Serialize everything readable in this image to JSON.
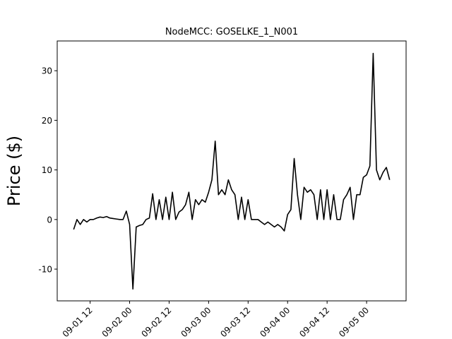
{
  "chart_data": {
    "type": "line",
    "title": "NodeMCC: GOSELKE_1_N001",
    "y_label": "Price ($)",
    "color": "#000000",
    "x": [
      "09-01 07",
      "09-01 08",
      "09-01 09",
      "09-01 10",
      "09-01 11",
      "09-01 12",
      "09-01 13",
      "09-01 14",
      "09-01 15",
      "09-01 16",
      "09-01 17",
      "09-01 18",
      "09-01 19",
      "09-01 20",
      "09-01 21",
      "09-01 22",
      "09-01 23",
      "09-02 00",
      "09-02 01",
      "09-02 02",
      "09-02 03",
      "09-02 04",
      "09-02 05",
      "09-02 06",
      "09-02 07",
      "09-02 08",
      "09-02 09",
      "09-02 10",
      "09-02 11",
      "09-02 12",
      "09-02 13",
      "09-02 14",
      "09-02 15",
      "09-02 16",
      "09-02 17",
      "09-02 18",
      "09-02 19",
      "09-02 20",
      "09-02 21",
      "09-02 22",
      "09-02 23",
      "09-03 00",
      "09-03 01",
      "09-03 02",
      "09-03 03",
      "09-03 04",
      "09-03 05",
      "09-03 06",
      "09-03 07",
      "09-03 08",
      "09-03 09",
      "09-03 10",
      "09-03 11",
      "09-03 12",
      "09-03 13",
      "09-03 14",
      "09-03 15",
      "09-03 16",
      "09-03 17",
      "09-03 18",
      "09-03 19",
      "09-03 20",
      "09-03 21",
      "09-03 22",
      "09-03 23",
      "09-04 00",
      "09-04 01",
      "09-04 02",
      "09-04 03",
      "09-04 04",
      "09-04 05",
      "09-04 06",
      "09-04 07",
      "09-04 08",
      "09-04 09",
      "09-04 10",
      "09-04 11",
      "09-04 12",
      "09-04 13",
      "09-04 14",
      "09-04 15",
      "09-04 16",
      "09-04 17",
      "09-04 18",
      "09-04 19",
      "09-04 20",
      "09-04 21",
      "09-04 22",
      "09-04 23",
      "09-05 00",
      "09-05 01",
      "09-05 02",
      "09-05 03",
      "09-05 04",
      "09-05 05",
      "09-05 06",
      "09-05 07"
    ],
    "values": [
      -2,
      0,
      -1,
      0,
      -0.5,
      0,
      0,
      0.3,
      0.5,
      0.4,
      0.6,
      0.3,
      0.2,
      0.1,
      0,
      0,
      1.7,
      -1,
      -14,
      -1.5,
      -1.2,
      -1,
      0,
      0.3,
      5.2,
      0,
      4,
      0,
      4.5,
      0,
      5.5,
      0,
      1.5,
      2,
      3,
      5.5,
      0,
      4,
      3,
      4,
      3.5,
      5.5,
      8,
      15.8,
      5,
      6,
      5,
      8,
      6,
      5,
      0,
      4.5,
      0,
      4,
      0,
      0,
      0,
      -0.5,
      -1,
      -0.5,
      -1,
      -1.5,
      -1,
      -1.5,
      -2.3,
      1,
      2,
      12.3,
      5,
      0,
      6.5,
      5.5,
      6,
      5,
      0,
      6,
      0,
      6,
      0,
      5,
      0,
      0,
      4,
      5,
      6.5,
      0,
      5,
      5,
      8.5,
      9,
      10.8,
      33.5,
      10,
      8,
      9.5,
      10.5,
      8
    ],
    "xlim": [
      "09-01 02",
      "09-05 12"
    ],
    "xticks": [
      "09-01 12",
      "09-02 00",
      "09-02 12",
      "09-03 00",
      "09-03 12",
      "09-04 00",
      "09-04 12",
      "09-05 00"
    ],
    "ylim": [
      -16.4,
      36
    ],
    "yticks": [
      -10,
      0,
      10,
      20,
      30
    ]
  }
}
